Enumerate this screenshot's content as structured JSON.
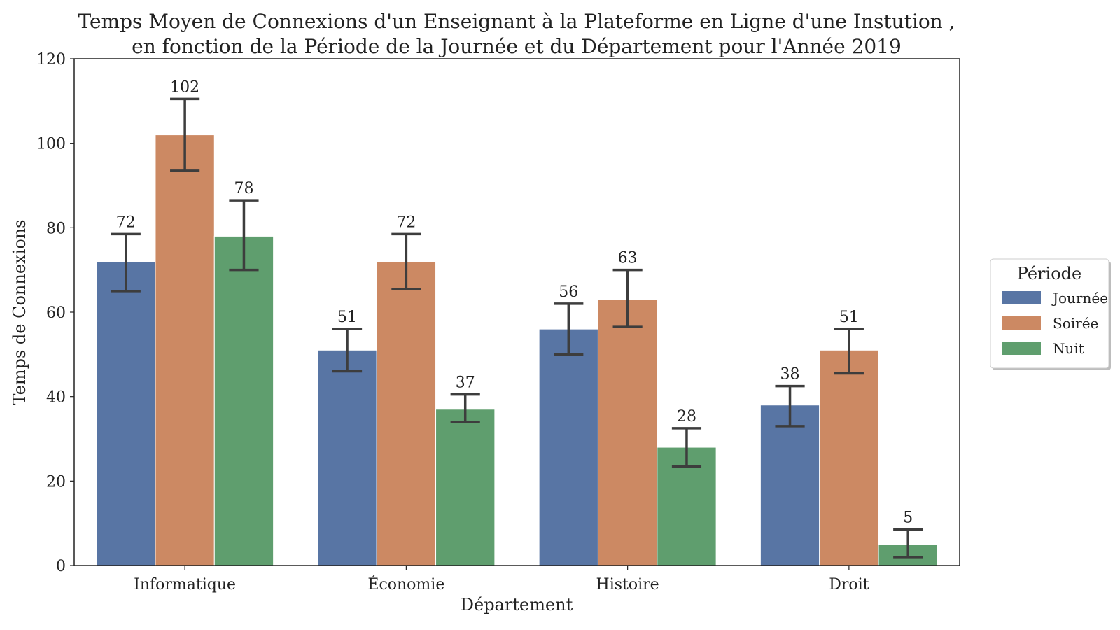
{
  "chart_data": {
    "type": "bar",
    "title": [
      "Temps Moyen de Connexions d'un Enseignant à la Plateforme en Ligne d'une Instution ,",
      "en fonction de la Période de la Journée et du Département pour l'Année 2019"
    ],
    "xlabel": "Département",
    "ylabel": "Temps de Connexions",
    "ylim": [
      0,
      120
    ],
    "yticks": [
      0,
      20,
      40,
      60,
      80,
      100,
      120
    ],
    "categories": [
      "Informatique",
      "Économie",
      "Histoire",
      "Droit"
    ],
    "series": [
      {
        "name": "Journée",
        "color": "#5875a4",
        "values": [
          72,
          51,
          56,
          38
        ],
        "err_low": [
          65,
          46,
          50,
          33
        ],
        "err_high": [
          78.5,
          56,
          62,
          42.5
        ]
      },
      {
        "name": "Soirée",
        "color": "#cc8963",
        "values": [
          102,
          72,
          63,
          51
        ],
        "err_low": [
          93.5,
          65.5,
          56.5,
          45.5
        ],
        "err_high": [
          110.5,
          78.5,
          70,
          56
        ]
      },
      {
        "name": "Nuit",
        "color": "#5f9e6e",
        "values": [
          78,
          37,
          28,
          5
        ],
        "err_low": [
          70,
          34,
          23.5,
          2
        ],
        "err_high": [
          86.5,
          40.5,
          32.5,
          8.5
        ]
      }
    ],
    "data_labels": [
      [
        "72",
        "51",
        "56",
        "38"
      ],
      [
        "102",
        "72",
        "63",
        "51"
      ],
      [
        "78",
        "37",
        "28",
        "5"
      ]
    ],
    "legend": {
      "title": "Période",
      "placement": "right"
    },
    "grid": false
  }
}
